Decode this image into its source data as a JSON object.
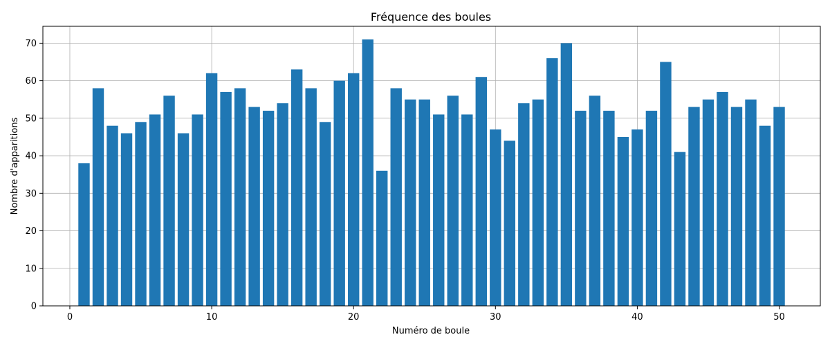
{
  "chart_data": {
    "type": "bar",
    "title": "Fréquence des boules",
    "xlabel": "Numéro de boule",
    "ylabel": "Nombre d'apparitions",
    "x": [
      1,
      2,
      3,
      4,
      5,
      6,
      7,
      8,
      9,
      10,
      11,
      12,
      13,
      14,
      15,
      16,
      17,
      18,
      19,
      20,
      21,
      22,
      23,
      24,
      25,
      26,
      27,
      28,
      29,
      30,
      31,
      32,
      33,
      34,
      35,
      36,
      37,
      38,
      39,
      40,
      41,
      42,
      43,
      44,
      45,
      46,
      47,
      48,
      49,
      50
    ],
    "values": [
      38,
      58,
      48,
      46,
      49,
      51,
      56,
      46,
      51,
      62,
      57,
      58,
      53,
      52,
      54,
      63,
      58,
      49,
      60,
      62,
      71,
      36,
      58,
      55,
      55,
      51,
      56,
      51,
      61,
      47,
      44,
      54,
      55,
      66,
      70,
      52,
      56,
      52,
      45,
      47,
      52,
      65,
      41,
      53,
      55,
      57,
      53,
      55,
      48,
      53
    ],
    "xlim": [
      -1.9,
      52.9
    ],
    "ylim": [
      0,
      74.5
    ],
    "xticks": [
      0,
      10,
      20,
      30,
      40,
      50
    ],
    "yticks": [
      0,
      10,
      20,
      30,
      40,
      50,
      60,
      70
    ],
    "grid": true,
    "bar_color": "#1f77b4"
  }
}
